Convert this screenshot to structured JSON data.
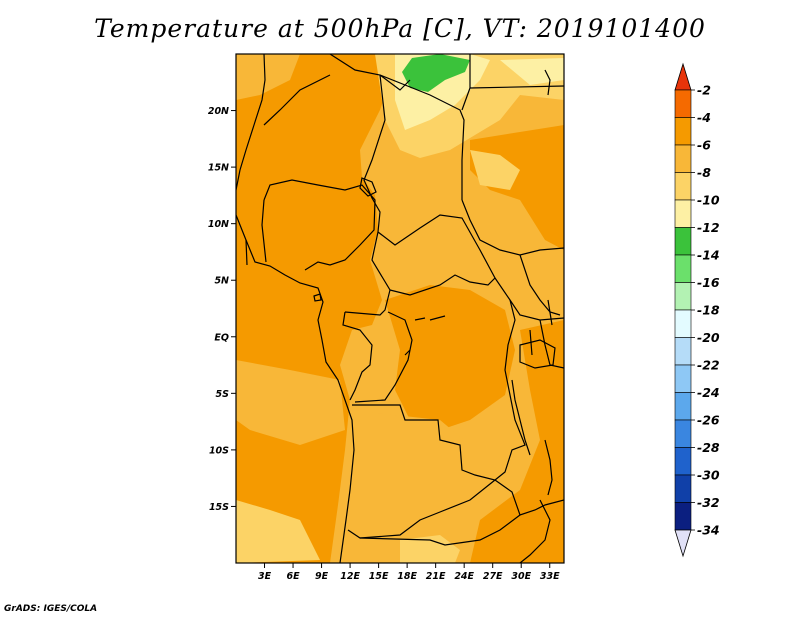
{
  "title": "Temperature at 500hPa [C], VT: 2019101400",
  "credit": "GrADS: IGES/COLA",
  "map": {
    "lon_range": [
      0,
      34.5
    ],
    "lat_range": [
      -20,
      25
    ],
    "lat_ticks": [
      {
        "lat": 20,
        "label": "20N"
      },
      {
        "lat": 15,
        "label": "15N"
      },
      {
        "lat": 10,
        "label": "10N"
      },
      {
        "lat": 5,
        "label": "5N"
      },
      {
        "lat": 0,
        "label": "EQ"
      },
      {
        "lat": -5,
        "label": "5S"
      },
      {
        "lat": -10,
        "label": "10S"
      },
      {
        "lat": -15,
        "label": "15S"
      }
    ],
    "lon_ticks": [
      {
        "lon": 3,
        "label": "3E"
      },
      {
        "lon": 6,
        "label": "6E"
      },
      {
        "lon": 9,
        "label": "9E"
      },
      {
        "lon": 12,
        "label": "12E"
      },
      {
        "lon": 15,
        "label": "15E"
      },
      {
        "lon": 18,
        "label": "18E"
      },
      {
        "lon": 21,
        "label": "21E"
      },
      {
        "lon": 24,
        "label": "24E"
      },
      {
        "lon": 27,
        "label": "27E"
      },
      {
        "lon": 30,
        "label": "30E"
      },
      {
        "lon": 33,
        "label": "33E"
      }
    ]
  },
  "colorbar": {
    "levels": [
      "-2",
      "-4",
      "-6",
      "-8",
      "-10",
      "-12",
      "-14",
      "-16",
      "-18",
      "-20",
      "-22",
      "-24",
      "-26",
      "-28",
      "-30",
      "-32",
      "-34"
    ],
    "colors": [
      "#e8340a",
      "#f56a00",
      "#f59a00",
      "#f8b738",
      "#fcd366",
      "#fdf0a4",
      "#3bc23b",
      "#6be06b",
      "#b3f2b3",
      "#e3fbff",
      "#b5dcf8",
      "#8ec8f5",
      "#5ca8ec",
      "#3a86e0",
      "#1f62cc",
      "#1040a8",
      "#0b1f80",
      "#e1e1f7"
    ]
  },
  "colors": {
    "ocean_fill": "#f59a00",
    "dominant_fill": "#f8b738",
    "cool_fill": "#fcd366",
    "coolest_fill": "#fdf0a4",
    "green_patch": "#3bc23b",
    "border": "#000000"
  }
}
